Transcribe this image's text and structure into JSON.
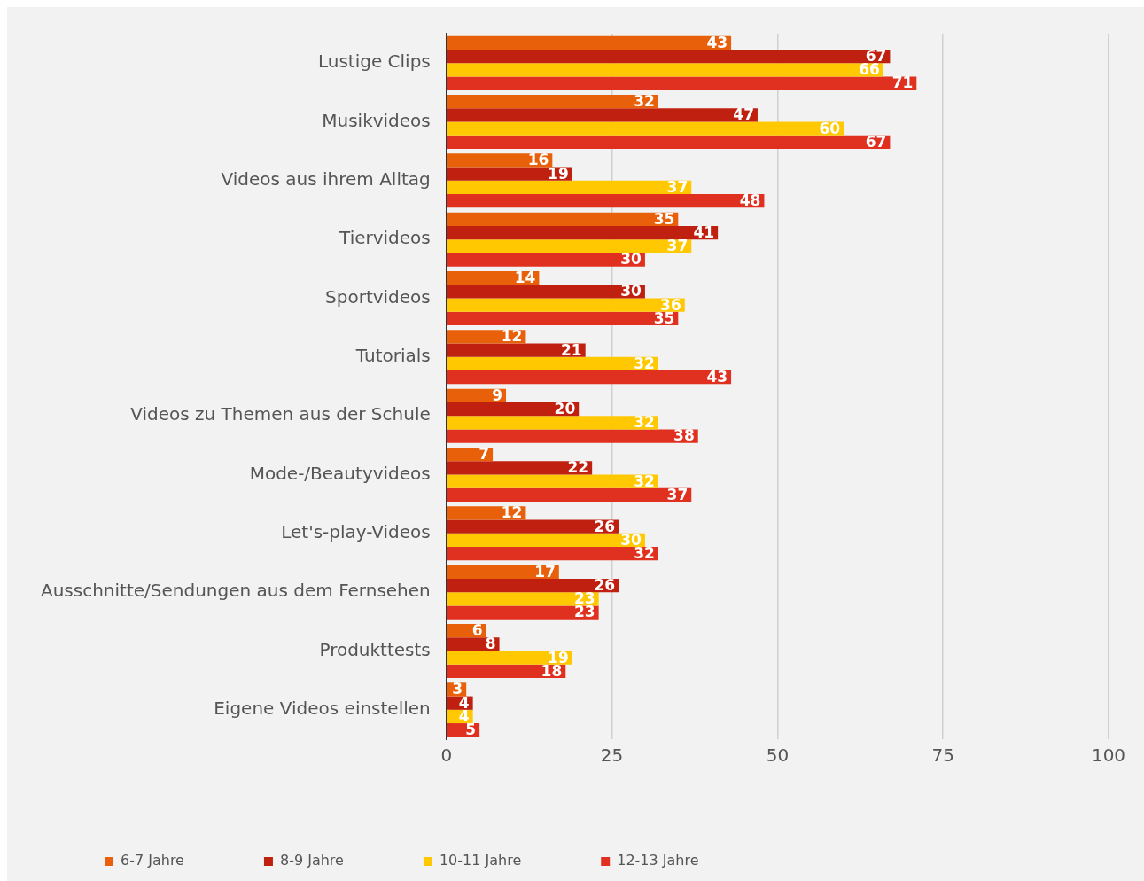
{
  "chart_data": {
    "type": "bar",
    "orientation": "horizontal",
    "categories": [
      "Lustige Clips",
      "Musikvideos",
      "Videos aus ihrem Alltag",
      "Tiervideos",
      "Sportvideos",
      "Tutorials",
      "Videos zu Themen aus der Schule",
      "Mode-/Beautyvideos",
      "Let's-play-Videos",
      "Ausschnitte/Sendungen aus dem Fernsehen",
      "Produkttests",
      "Eigene Videos einstellen"
    ],
    "series": [
      {
        "name": "6-7 Jahre",
        "color": "#e8600a",
        "values": [
          43,
          32,
          16,
          35,
          14,
          12,
          9,
          7,
          12,
          17,
          6,
          3
        ]
      },
      {
        "name": "8-9 Jahre",
        "color": "#c0200f",
        "values": [
          67,
          47,
          19,
          41,
          30,
          21,
          20,
          22,
          26,
          26,
          8,
          4
        ]
      },
      {
        "name": "10-11 Jahre",
        "color": "#ffc800",
        "values": [
          66,
          60,
          37,
          37,
          36,
          32,
          32,
          32,
          30,
          23,
          19,
          4
        ]
      },
      {
        "name": "12-13 Jahre",
        "color": "#e03020",
        "values": [
          71,
          67,
          48,
          30,
          35,
          43,
          38,
          37,
          32,
          23,
          18,
          5
        ]
      }
    ],
    "xlim": [
      0,
      100
    ],
    "xticks": [
      0,
      25,
      50,
      75,
      100
    ],
    "grid": "x",
    "legend": "bottom",
    "data_labels": true
  }
}
